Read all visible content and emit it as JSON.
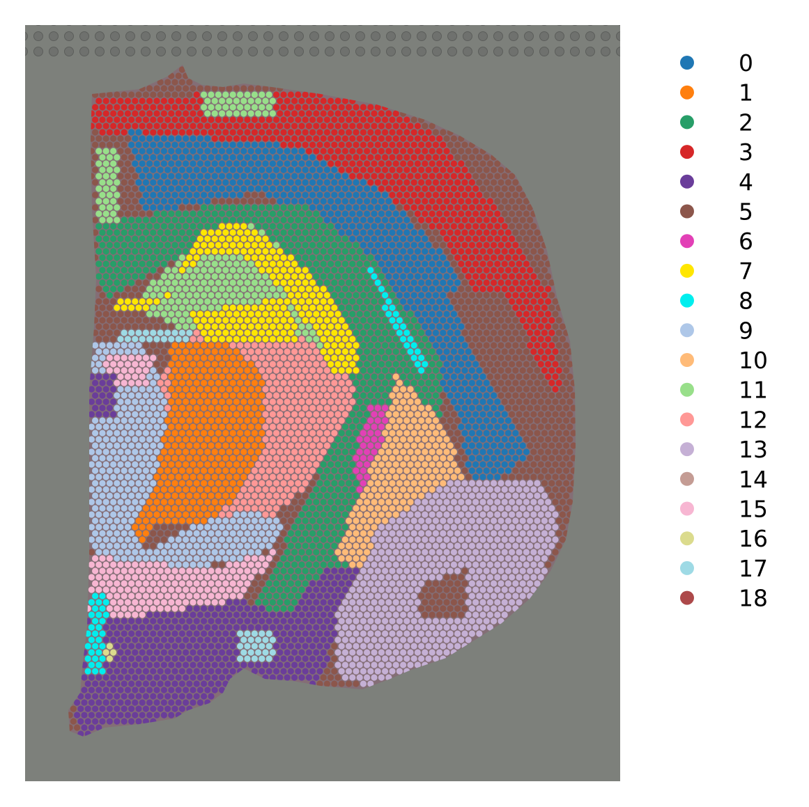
{
  "chart_data": {
    "type": "scatter",
    "title": "",
    "xlabel": "",
    "ylabel": "",
    "grid": false,
    "axes_visible": false,
    "background": "histology tissue image (grey slide)",
    "legend": {
      "placement": "right-outside",
      "entries": [
        {
          "label": "0",
          "color": "#1f77b4"
        },
        {
          "label": "1",
          "color": "#ff7f0e"
        },
        {
          "label": "2",
          "color": "#279e68"
        },
        {
          "label": "3",
          "color": "#d62728"
        },
        {
          "label": "4",
          "color": "#6a3d9a"
        },
        {
          "label": "5",
          "color": "#8c564b"
        },
        {
          "label": "6",
          "color": "#e240b6"
        },
        {
          "label": "7",
          "color": "#ffe600"
        },
        {
          "label": "8",
          "color": "#00eeee"
        },
        {
          "label": "9",
          "color": "#aec7e8"
        },
        {
          "label": "10",
          "color": "#ffbb78"
        },
        {
          "label": "11",
          "color": "#98df8a"
        },
        {
          "label": "12",
          "color": "#ff9896"
        },
        {
          "label": "13",
          "color": "#c5b0d5"
        },
        {
          "label": "14",
          "color": "#c49c94"
        },
        {
          "label": "15",
          "color": "#f7b6d2"
        },
        {
          "label": "16",
          "color": "#dbdb8d"
        },
        {
          "label": "17",
          "color": "#9edae5"
        },
        {
          "label": "18",
          "color": "#ad494a"
        }
      ]
    },
    "x_range": [
      0,
      1
    ],
    "y_range": [
      0,
      1
    ],
    "regions": [
      {
        "cluster": 3,
        "polygon": [
          [
            0.11,
            0.1
          ],
          [
            0.56,
            0.08
          ],
          [
            0.7,
            0.15
          ],
          [
            0.8,
            0.25
          ],
          [
            0.88,
            0.35
          ],
          [
            0.9,
            0.47
          ],
          [
            0.88,
            0.56
          ],
          [
            0.86,
            0.55
          ],
          [
            0.82,
            0.45
          ],
          [
            0.7,
            0.28
          ],
          [
            0.6,
            0.22
          ],
          [
            0.45,
            0.18
          ],
          [
            0.11,
            0.14
          ]
        ]
      },
      {
        "cluster": 0,
        "polygon": [
          [
            0.17,
            0.14
          ],
          [
            0.45,
            0.16
          ],
          [
            0.6,
            0.22
          ],
          [
            0.7,
            0.3
          ],
          [
            0.8,
            0.45
          ],
          [
            0.86,
            0.56
          ],
          [
            0.78,
            0.61
          ],
          [
            0.75,
            0.6
          ],
          [
            0.72,
            0.5
          ],
          [
            0.62,
            0.38
          ],
          [
            0.5,
            0.28
          ],
          [
            0.4,
            0.22
          ],
          [
            0.2,
            0.25
          ]
        ]
      },
      {
        "cluster": 0,
        "polygon": [
          [
            0.75,
            0.6
          ],
          [
            0.8,
            0.6
          ],
          [
            0.8,
            0.66
          ],
          [
            0.77,
            0.66
          ]
        ]
      },
      {
        "cluster": 5,
        "polygon": [
          [
            0.7,
            0.35
          ],
          [
            0.8,
            0.35
          ],
          [
            0.93,
            0.55
          ],
          [
            0.95,
            0.66
          ],
          [
            0.86,
            0.78
          ],
          [
            0.82,
            0.72
          ],
          [
            0.87,
            0.6
          ]
        ]
      },
      {
        "cluster": 2,
        "polygon": [
          [
            0.12,
            0.26
          ],
          [
            0.3,
            0.24
          ],
          [
            0.48,
            0.24
          ],
          [
            0.6,
            0.32
          ],
          [
            0.7,
            0.45
          ],
          [
            0.7,
            0.55
          ],
          [
            0.58,
            0.58
          ],
          [
            0.52,
            0.8
          ],
          [
            0.42,
            0.84
          ],
          [
            0.38,
            0.78
          ],
          [
            0.5,
            0.58
          ],
          [
            0.56,
            0.48
          ],
          [
            0.45,
            0.34
          ],
          [
            0.28,
            0.3
          ],
          [
            0.14,
            0.36
          ],
          [
            0.12,
            0.33
          ]
        ]
      },
      {
        "cluster": 11,
        "polygon": [
          [
            0.2,
            0.35
          ],
          [
            0.3,
            0.28
          ],
          [
            0.38,
            0.26
          ],
          [
            0.44,
            0.3
          ],
          [
            0.52,
            0.36
          ],
          [
            0.54,
            0.44
          ],
          [
            0.4,
            0.42
          ],
          [
            0.26,
            0.4
          ],
          [
            0.2,
            0.38
          ]
        ]
      },
      {
        "cluster": 11,
        "polygon": [
          [
            0.12,
            0.16
          ],
          [
            0.16,
            0.16
          ],
          [
            0.16,
            0.26
          ],
          [
            0.12,
            0.26
          ]
        ]
      },
      {
        "cluster": 11,
        "polygon": [
          [
            0.3,
            0.09
          ],
          [
            0.42,
            0.09
          ],
          [
            0.42,
            0.12
          ],
          [
            0.3,
            0.12
          ]
        ]
      },
      {
        "cluster": 12,
        "polygon": [
          [
            0.26,
            0.4
          ],
          [
            0.44,
            0.4
          ],
          [
            0.54,
            0.45
          ],
          [
            0.56,
            0.5
          ],
          [
            0.52,
            0.55
          ],
          [
            0.46,
            0.62
          ],
          [
            0.4,
            0.66
          ],
          [
            0.3,
            0.66
          ],
          [
            0.24,
            0.6
          ],
          [
            0.22,
            0.48
          ]
        ]
      },
      {
        "cluster": 1,
        "polygon": [
          [
            0.24,
            0.42
          ],
          [
            0.34,
            0.42
          ],
          [
            0.4,
            0.46
          ],
          [
            0.4,
            0.56
          ],
          [
            0.36,
            0.62
          ],
          [
            0.3,
            0.66
          ],
          [
            0.22,
            0.66
          ],
          [
            0.18,
            0.7
          ],
          [
            0.14,
            0.68
          ],
          [
            0.2,
            0.6
          ],
          [
            0.24,
            0.52
          ]
        ]
      },
      {
        "cluster": 9,
        "polygon": [
          [
            0.11,
            0.42
          ],
          [
            0.2,
            0.42
          ],
          [
            0.24,
            0.5
          ],
          [
            0.22,
            0.6
          ],
          [
            0.18,
            0.66
          ],
          [
            0.2,
            0.7
          ],
          [
            0.28,
            0.66
          ],
          [
            0.38,
            0.64
          ],
          [
            0.44,
            0.66
          ],
          [
            0.4,
            0.7
          ],
          [
            0.28,
            0.72
          ],
          [
            0.14,
            0.72
          ],
          [
            0.11,
            0.68
          ]
        ]
      },
      {
        "cluster": 15,
        "polygon": [
          [
            0.1,
            0.7
          ],
          [
            0.3,
            0.72
          ],
          [
            0.4,
            0.7
          ],
          [
            0.44,
            0.68
          ],
          [
            0.36,
            0.76
          ],
          [
            0.2,
            0.78
          ],
          [
            0.1,
            0.78
          ]
        ]
      },
      {
        "cluster": 15,
        "polygon": [
          [
            0.13,
            0.44
          ],
          [
            0.22,
            0.44
          ],
          [
            0.2,
            0.48
          ],
          [
            0.13,
            0.48
          ]
        ]
      },
      {
        "cluster": 4,
        "polygon": [
          [
            0.1,
            0.46
          ],
          [
            0.15,
            0.46
          ],
          [
            0.15,
            0.52
          ],
          [
            0.1,
            0.52
          ]
        ]
      },
      {
        "cluster": 4,
        "polygon": [
          [
            0.1,
            0.78
          ],
          [
            0.2,
            0.78
          ],
          [
            0.36,
            0.76
          ],
          [
            0.44,
            0.78
          ],
          [
            0.5,
            0.72
          ],
          [
            0.56,
            0.72
          ],
          [
            0.52,
            0.82
          ],
          [
            0.48,
            0.88
          ],
          [
            0.4,
            0.9
          ],
          [
            0.3,
            0.92
          ],
          [
            0.22,
            0.95
          ],
          [
            0.1,
            0.96
          ],
          [
            0.08,
            0.9
          ]
        ]
      },
      {
        "cluster": 6,
        "polygon": [
          [
            0.58,
            0.5
          ],
          [
            0.62,
            0.5
          ],
          [
            0.6,
            0.6
          ],
          [
            0.56,
            0.62
          ],
          [
            0.55,
            0.58
          ]
        ]
      },
      {
        "cluster": 10,
        "polygon": [
          [
            0.62,
            0.46
          ],
          [
            0.7,
            0.52
          ],
          [
            0.74,
            0.6
          ],
          [
            0.7,
            0.66
          ],
          [
            0.6,
            0.7
          ],
          [
            0.56,
            0.72
          ],
          [
            0.52,
            0.7
          ],
          [
            0.56,
            0.62
          ],
          [
            0.6,
            0.56
          ]
        ]
      },
      {
        "cluster": 7,
        "polygon": [
          [
            0.15,
            0.36
          ],
          [
            0.24,
            0.36
          ],
          [
            0.3,
            0.27
          ],
          [
            0.36,
            0.26
          ],
          [
            0.44,
            0.3
          ],
          [
            0.52,
            0.36
          ],
          [
            0.56,
            0.42
          ],
          [
            0.56,
            0.46
          ],
          [
            0.52,
            0.46
          ],
          [
            0.48,
            0.4
          ],
          [
            0.42,
            0.34
          ],
          [
            0.36,
            0.3
          ],
          [
            0.3,
            0.3
          ],
          [
            0.26,
            0.34
          ],
          [
            0.2,
            0.38
          ],
          [
            0.15,
            0.38
          ]
        ]
      },
      {
        "cluster": 7,
        "polygon": [
          [
            0.28,
            0.38
          ],
          [
            0.44,
            0.36
          ],
          [
            0.46,
            0.42
          ],
          [
            0.3,
            0.42
          ]
        ]
      },
      {
        "cluster": 13,
        "polygon": [
          [
            0.6,
            0.66
          ],
          [
            0.72,
            0.6
          ],
          [
            0.86,
            0.6
          ],
          [
            0.9,
            0.66
          ],
          [
            0.86,
            0.76
          ],
          [
            0.78,
            0.82
          ],
          [
            0.68,
            0.86
          ],
          [
            0.6,
            0.88
          ],
          [
            0.52,
            0.86
          ],
          [
            0.52,
            0.78
          ],
          [
            0.56,
            0.72
          ]
        ]
      },
      {
        "cluster": 8,
        "polygon": [
          [
            0.57,
            0.32
          ],
          [
            0.59,
            0.32
          ],
          [
            0.68,
            0.46
          ],
          [
            0.66,
            0.46
          ]
        ]
      },
      {
        "cluster": 8,
        "polygon": [
          [
            0.11,
            0.75
          ],
          [
            0.14,
            0.75
          ],
          [
            0.13,
            0.86
          ],
          [
            0.1,
            0.86
          ]
        ]
      },
      {
        "cluster": 17,
        "polygon": [
          [
            0.16,
            0.4
          ],
          [
            0.28,
            0.4
          ],
          [
            0.28,
            0.42
          ],
          [
            0.16,
            0.42
          ]
        ]
      },
      {
        "cluster": 17,
        "polygon": [
          [
            0.36,
            0.8
          ],
          [
            0.42,
            0.8
          ],
          [
            0.42,
            0.84
          ],
          [
            0.36,
            0.84
          ]
        ]
      },
      {
        "cluster": 16,
        "polygon": [
          [
            0.13,
            0.82
          ],
          [
            0.15,
            0.82
          ],
          [
            0.15,
            0.84
          ],
          [
            0.13,
            0.84
          ]
        ]
      },
      {
        "cluster": 5,
        "polygon": [
          [
            0.66,
            0.74
          ],
          [
            0.74,
            0.72
          ],
          [
            0.74,
            0.78
          ],
          [
            0.66,
            0.78
          ]
        ]
      }
    ]
  }
}
